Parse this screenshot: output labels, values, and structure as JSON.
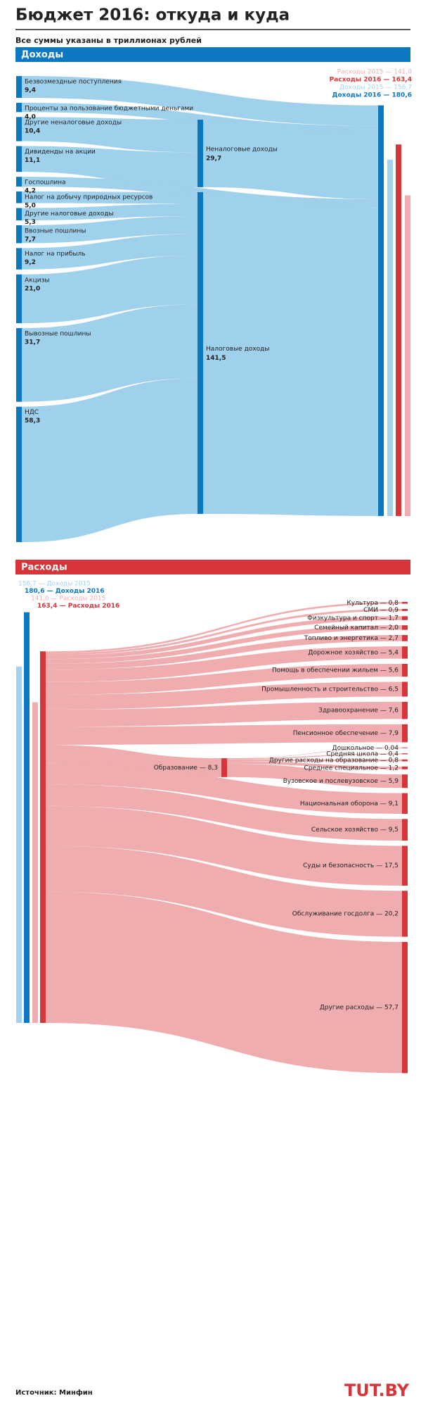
{
  "header": {
    "title": "Бюджет 2016: откуда и куда",
    "subtitle": "Все суммы указаны в триллионах рублей"
  },
  "chart_data": [
    {
      "type": "sankey",
      "heading": "Доходы",
      "sources": [
        {
          "name": "Безвозмездные поступления",
          "value": 9.4,
          "value_label": "9,4"
        },
        {
          "name": "Проценты за пользование бюджетными деньгами",
          "value": 4.0,
          "value_label": "4,0"
        },
        {
          "name": "Другие неналоговые доходы",
          "value": 10.4,
          "value_label": "10,4"
        },
        {
          "name": "Дивиденды на акции",
          "value": 11.1,
          "value_label": "11,1"
        },
        {
          "name": "Госпошлина",
          "value": 4.2,
          "value_label": "4,2"
        },
        {
          "name": "Налог на добычу природных ресурсов",
          "value": 5.0,
          "value_label": "5,0"
        },
        {
          "name": "Другие налоговые доходы",
          "value": 5.3,
          "value_label": "5,3"
        },
        {
          "name": "Ввозные пошлины",
          "value": 7.7,
          "value_label": "7,7"
        },
        {
          "name": "Налог на прибыль",
          "value": 9.2,
          "value_label": "9,2"
        },
        {
          "name": "Акцизы",
          "value": 21.0,
          "value_label": "21,0"
        },
        {
          "name": "Вывозные пошлины",
          "value": 31.7,
          "value_label": "31,7"
        },
        {
          "name": "НДС",
          "value": 58.3,
          "value_label": "58,3"
        }
      ],
      "groups": [
        {
          "name": "Неналоговые доходы",
          "value": 29.7,
          "value_label": "29,7"
        },
        {
          "name": "Налоговые доходы",
          "value": 141.5,
          "value_label": "141,5"
        }
      ],
      "totals": [
        {
          "label": "Доходы 2016 — 180,6",
          "value": 180.6,
          "color": "#0b78c1"
        },
        {
          "label": "Доходы 2015 — 156,7",
          "value": 156.7,
          "color": "#a3d2ef"
        },
        {
          "label": "Расходы 2016 — 163,4",
          "value": 163.4,
          "color": "#d6363a"
        },
        {
          "label": "Расходы 2015 — 141,0",
          "value": 141.0,
          "color": "#efadb0"
        }
      ]
    },
    {
      "type": "sankey",
      "heading": "Расходы",
      "totals": [
        {
          "label": "156,7 — Доходы 2015",
          "value": 156.7,
          "color": "#a3d2ef"
        },
        {
          "label": "180,6 — Доходы 2016",
          "value": 180.6,
          "color": "#0b78c1"
        },
        {
          "label": "141,0 — Расходы 2015",
          "value": 141.0,
          "color": "#efadb0"
        },
        {
          "label": "163,4 — Расходы 2016",
          "value": 163.4,
          "color": "#d6363a"
        }
      ],
      "items": [
        {
          "label": "Культура — 0,8",
          "value": 0.8
        },
        {
          "label": "СМИ — 0,9",
          "value": 0.9
        },
        {
          "label": "Физкультура и спорт — 1,7",
          "value": 1.7
        },
        {
          "label": "Семейный капитал — 2,0",
          "value": 2.0
        },
        {
          "label": "Топливо и энергетика — 2,7",
          "value": 2.7
        },
        {
          "label": "Дорожное хозяйство — 5,4",
          "value": 5.4
        },
        {
          "label": "Помощь в обеспечении жильем — 5,6",
          "value": 5.6
        },
        {
          "label": "Промышленность и строительство — 6,5",
          "value": 6.5
        },
        {
          "label": "Здравоохранение — 7,6",
          "value": 7.6
        },
        {
          "label": "Пенсионное обеспечение — 7,9",
          "value": 7.9
        },
        {
          "label": "Образование — 8,3",
          "value": 8.3,
          "children": [
            {
              "label": "Дошкольное — 0,04",
              "value": 0.04
            },
            {
              "label": "Средняя школа — 0,4",
              "value": 0.4
            },
            {
              "label": "Другие расходы на образование — 0,8",
              "value": 0.8
            },
            {
              "label": "Среднее специальное — 1,2",
              "value": 1.2
            },
            {
              "label": "Вузовское и послевузовское — 5,9",
              "value": 5.9
            }
          ]
        },
        {
          "label": "Национальная оборона — 9,1",
          "value": 9.1
        },
        {
          "label": "Сельское хозяйство — 9,5",
          "value": 9.5
        },
        {
          "label": "Суды и безопасность — 17,5",
          "value": 17.5
        },
        {
          "label": "Обслуживание госдолга — 20,2",
          "value": 20.2
        },
        {
          "label": "Другие расходы — 57,7",
          "value": 57.7
        }
      ]
    }
  ],
  "footer": {
    "source": "Источник: Минфин",
    "logo": "TUT.BY"
  }
}
